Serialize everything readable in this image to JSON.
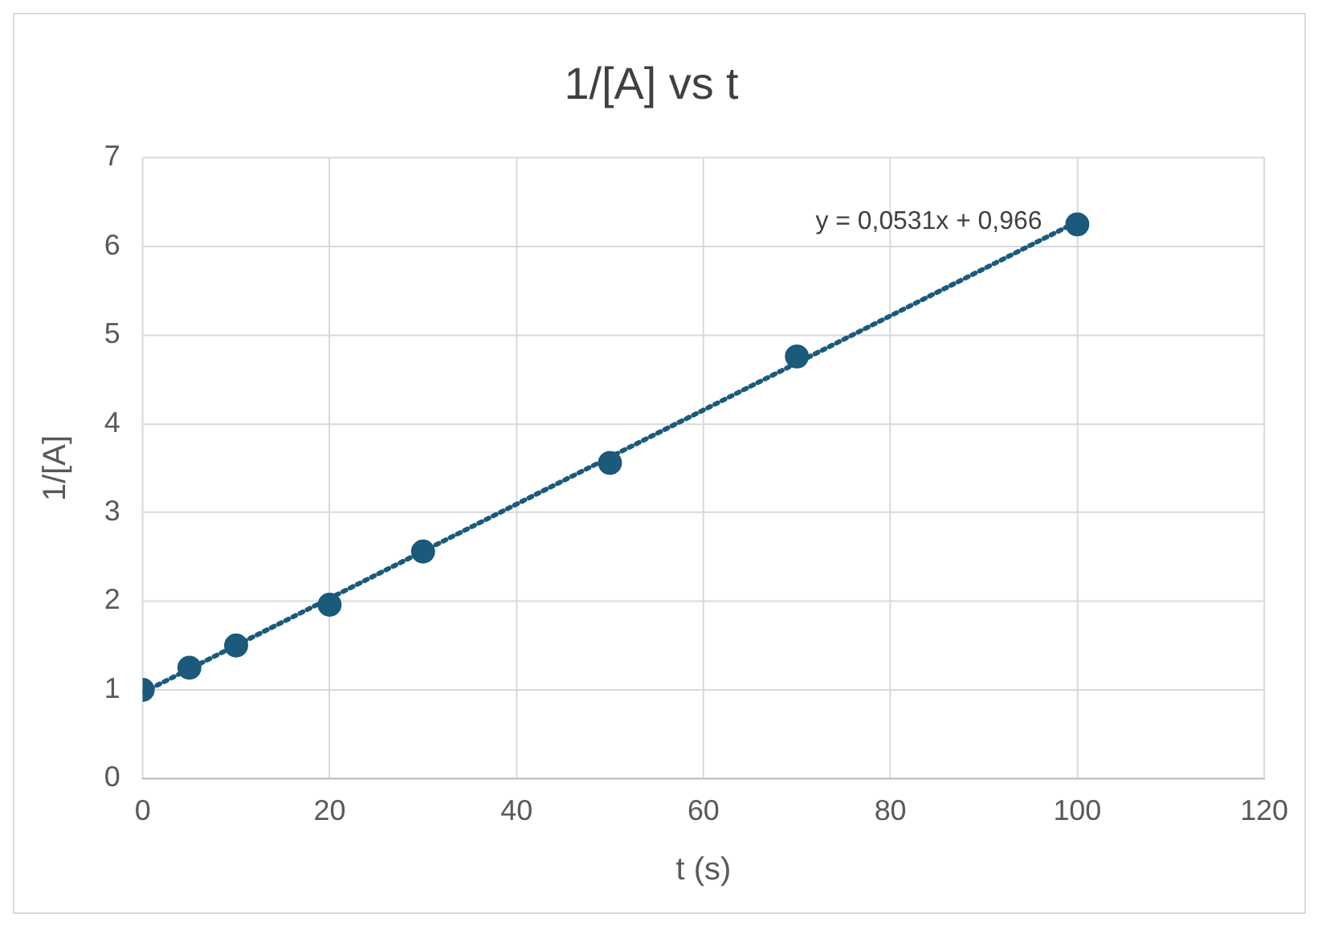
{
  "chart_data": {
    "type": "scatter",
    "title": "1/[A] vs t",
    "xlabel": "t (s)",
    "ylabel": "1/[A]",
    "x": [
      0,
      5,
      10,
      20,
      30,
      50,
      70,
      100
    ],
    "series": [
      {
        "color": "#1b5a7a",
        "marker": "circle",
        "values": [
          1.0,
          1.25,
          1.5,
          1.96,
          2.56,
          3.56,
          4.76,
          6.25
        ]
      },
      {
        "type": "line",
        "color": "#1b5a7a",
        "line_style": "dotted",
        "marker": "none",
        "x": [
          0,
          100
        ],
        "values": [
          0.97,
          6.28
        ]
      }
    ],
    "xlim": [
      0,
      120
    ],
    "xticks": [
      0,
      20,
      40,
      60,
      80,
      100,
      120
    ],
    "ylim": [
      0,
      7
    ],
    "yticks": [
      0,
      1,
      2,
      3,
      4,
      5,
      6,
      7
    ],
    "grid": true,
    "legend": false,
    "annotations": [
      {
        "text": "y = 0,0531x + 0,966",
        "x": 100,
        "y": 6.28
      }
    ]
  }
}
